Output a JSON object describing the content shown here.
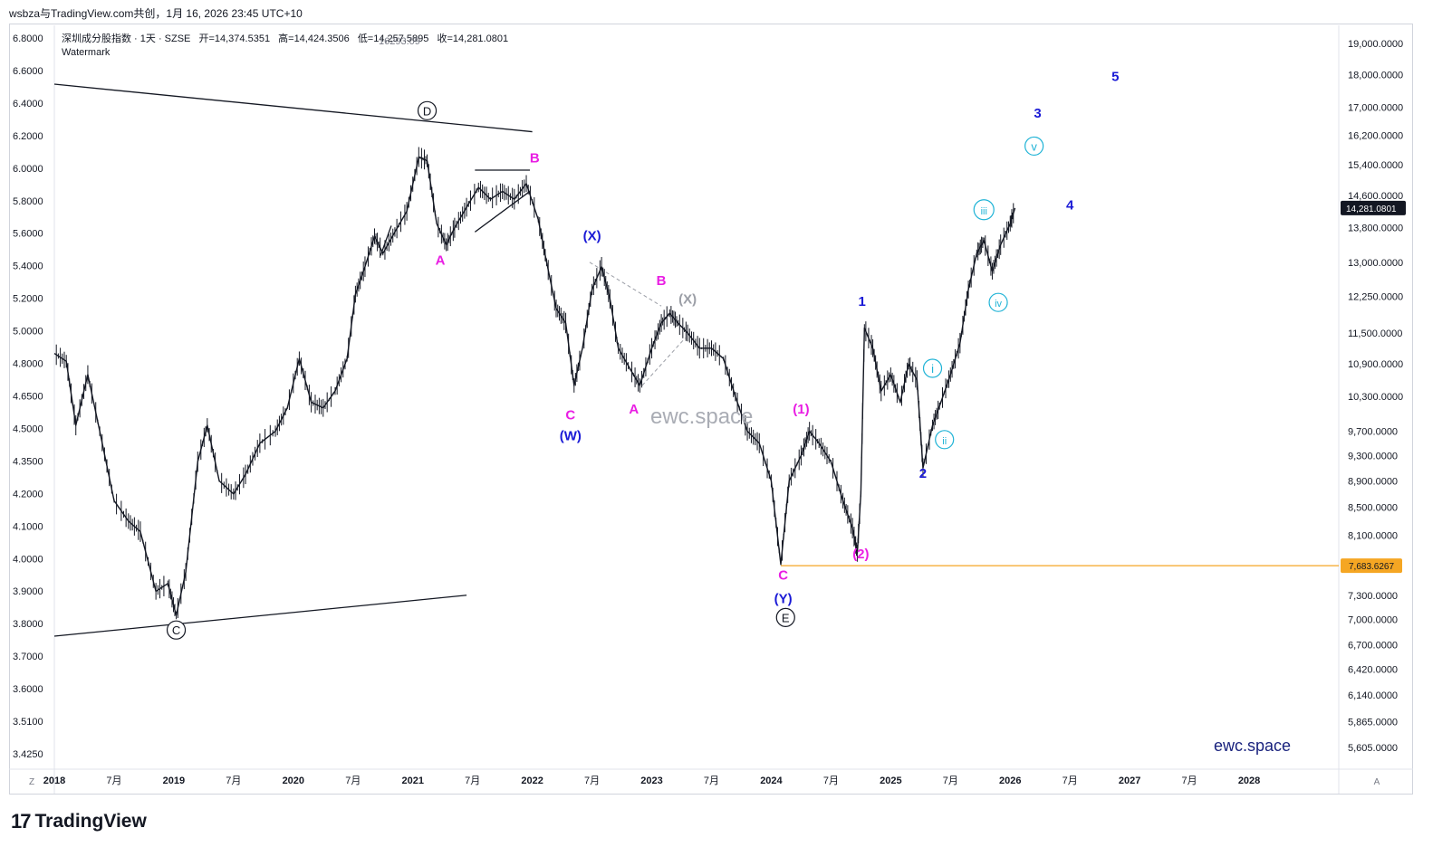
{
  "window_title": "wsbza与TradingView.com共创，1月 16, 2026 23:45 UTC+10",
  "header": {
    "symbol": "深圳成分股指数 · 1天 · SZSE",
    "open": "开=14,374.5351",
    "high": "高=14,424.3506",
    "low": "低=14,257.5895",
    "close": "收=14,281.0801",
    "overlay": "16293.09",
    "watermark_label": "Watermark"
  },
  "watermark_text": "ewc.space",
  "corner_text": "ewc.space",
  "brand": {
    "logo": "17",
    "name": "TradingView"
  },
  "colors": {
    "black": "#131722",
    "magenta": "#e91ee3",
    "blue": "#1a1ad6",
    "cyan": "#1fb3d6",
    "gray": "#9b9ea6",
    "orange": "#f5a623",
    "price_bg": "#131722"
  },
  "chart_data": {
    "type": "line",
    "title": "深圳成分股指数 · 1天 · SZSE",
    "xlabel": "",
    "ylabel": "",
    "y_scale": "log",
    "ylim": [
      5400,
      19600
    ],
    "xlim": [
      2018.0,
      2028.75
    ],
    "left_axis_ticks": [
      "6.8000",
      "6.6000",
      "6.4000",
      "6.2000",
      "6.0000",
      "5.8000",
      "5.6000",
      "5.4000",
      "5.2000",
      "5.0000",
      "4.8000",
      "4.6500",
      "4.5000",
      "4.3500",
      "4.2000",
      "4.1000",
      "4.0000",
      "3.9000",
      "3.8000",
      "3.7000",
      "3.6000",
      "3.5100",
      "3.4250"
    ],
    "right_axis_ticks": [
      {
        "label": "19,000.0000",
        "value": 19000
      },
      {
        "label": "18,000.0000",
        "value": 18000
      },
      {
        "label": "17,000.0000",
        "value": 17000
      },
      {
        "label": "16,200.0000",
        "value": 16200
      },
      {
        "label": "15,400.0000",
        "value": 15400
      },
      {
        "label": "14,600.0000",
        "value": 14600
      },
      {
        "label": "13,800.0000",
        "value": 13800
      },
      {
        "label": "13,000.0000",
        "value": 13000
      },
      {
        "label": "12,250.0000",
        "value": 12250
      },
      {
        "label": "11,500.0000",
        "value": 11500
      },
      {
        "label": "10,900.0000",
        "value": 10900
      },
      {
        "label": "10,300.0000",
        "value": 10300
      },
      {
        "label": "9,700.0000",
        "value": 9700
      },
      {
        "label": "9,300.0000",
        "value": 9300
      },
      {
        "label": "8,900.0000",
        "value": 8900
      },
      {
        "label": "8,500.0000",
        "value": 8500
      },
      {
        "label": "8,100.0000",
        "value": 8100
      },
      {
        "label": "7,300.0000",
        "value": 7300
      },
      {
        "label": "7,000.0000",
        "value": 7000
      },
      {
        "label": "6,700.0000",
        "value": 6700
      },
      {
        "label": "6,420.0000",
        "value": 6420
      },
      {
        "label": "6,140.0000",
        "value": 6140
      },
      {
        "label": "5,865.0000",
        "value": 5865
      },
      {
        "label": "5,605.0000",
        "value": 5605
      }
    ],
    "x_ticks": [
      {
        "label": "2018",
        "value": 2018.0,
        "bold": true
      },
      {
        "label": "7月",
        "value": 2018.5,
        "bold": false
      },
      {
        "label": "2019",
        "value": 2019.0,
        "bold": true
      },
      {
        "label": "7月",
        "value": 2019.5,
        "bold": false
      },
      {
        "label": "2020",
        "value": 2020.0,
        "bold": true
      },
      {
        "label": "7月",
        "value": 2020.5,
        "bold": false
      },
      {
        "label": "2021",
        "value": 2021.0,
        "bold": true
      },
      {
        "label": "7月",
        "value": 2021.5,
        "bold": false
      },
      {
        "label": "2022",
        "value": 2022.0,
        "bold": true
      },
      {
        "label": "7月",
        "value": 2022.5,
        "bold": false
      },
      {
        "label": "2023",
        "value": 2023.0,
        "bold": true
      },
      {
        "label": "7月",
        "value": 2023.5,
        "bold": false
      },
      {
        "label": "2024",
        "value": 2024.0,
        "bold": true
      },
      {
        "label": "7月",
        "value": 2024.5,
        "bold": false
      },
      {
        "label": "2025",
        "value": 2025.0,
        "bold": true
      },
      {
        "label": "7月",
        "value": 2025.5,
        "bold": false
      },
      {
        "label": "2026",
        "value": 2026.0,
        "bold": true
      },
      {
        "label": "7月",
        "value": 2026.5,
        "bold": false
      },
      {
        "label": "2027",
        "value": 2027.0,
        "bold": true
      },
      {
        "label": "7月",
        "value": 2027.5,
        "bold": false
      },
      {
        "label": "2028",
        "value": 2028.0,
        "bold": true
      }
    ],
    "series": [
      {
        "color": "#131722",
        "points": [
          [
            2018.0,
            11100
          ],
          [
            2018.1,
            10950
          ],
          [
            2018.18,
            9800
          ],
          [
            2018.28,
            10700
          ],
          [
            2018.38,
            9700
          ],
          [
            2018.5,
            8600
          ],
          [
            2018.62,
            8300
          ],
          [
            2018.72,
            8150
          ],
          [
            2018.85,
            7350
          ],
          [
            2018.95,
            7450
          ],
          [
            2019.02,
            7050
          ],
          [
            2019.1,
            7600
          ],
          [
            2019.2,
            9200
          ],
          [
            2019.28,
            9800
          ],
          [
            2019.38,
            8900
          ],
          [
            2019.5,
            8700
          ],
          [
            2019.6,
            9000
          ],
          [
            2019.72,
            9500
          ],
          [
            2019.85,
            9700
          ],
          [
            2019.95,
            10100
          ],
          [
            2020.05,
            11000
          ],
          [
            2020.15,
            10200
          ],
          [
            2020.25,
            10100
          ],
          [
            2020.35,
            10400
          ],
          [
            2020.45,
            11000
          ],
          [
            2020.52,
            12300
          ],
          [
            2020.6,
            12900
          ],
          [
            2020.68,
            13600
          ],
          [
            2020.75,
            13200
          ],
          [
            2020.85,
            13700
          ],
          [
            2020.95,
            14200
          ],
          [
            2021.05,
            15600
          ],
          [
            2021.12,
            15500
          ],
          [
            2021.2,
            13900
          ],
          [
            2021.28,
            13400
          ],
          [
            2021.35,
            13800
          ],
          [
            2021.45,
            14300
          ],
          [
            2021.55,
            14800
          ],
          [
            2021.65,
            14500
          ],
          [
            2021.75,
            14700
          ],
          [
            2021.85,
            14500
          ],
          [
            2021.95,
            14900
          ],
          [
            2022.05,
            14000
          ],
          [
            2022.12,
            13000
          ],
          [
            2022.2,
            12000
          ],
          [
            2022.28,
            11700
          ],
          [
            2022.35,
            10500
          ],
          [
            2022.42,
            11200
          ],
          [
            2022.5,
            12400
          ],
          [
            2022.58,
            12900
          ],
          [
            2022.65,
            12200
          ],
          [
            2022.72,
            11200
          ],
          [
            2022.82,
            10800
          ],
          [
            2022.9,
            10500
          ],
          [
            2023.0,
            11200
          ],
          [
            2023.08,
            11700
          ],
          [
            2023.15,
            11900
          ],
          [
            2023.22,
            11700
          ],
          [
            2023.3,
            11500
          ],
          [
            2023.4,
            11200
          ],
          [
            2023.5,
            11200
          ],
          [
            2023.6,
            11000
          ],
          [
            2023.7,
            10300
          ],
          [
            2023.8,
            9700
          ],
          [
            2023.9,
            9500
          ],
          [
            2024.0,
            8900
          ],
          [
            2024.08,
            7700
          ],
          [
            2024.15,
            8900
          ],
          [
            2024.25,
            9300
          ],
          [
            2024.32,
            9700
          ],
          [
            2024.4,
            9500
          ],
          [
            2024.5,
            9200
          ],
          [
            2024.6,
            8600
          ],
          [
            2024.68,
            8200
          ],
          [
            2024.72,
            7850
          ],
          [
            2024.75,
            8700
          ],
          [
            2024.78,
            11600
          ],
          [
            2024.85,
            11200
          ],
          [
            2024.92,
            10400
          ],
          [
            2025.0,
            10700
          ],
          [
            2025.08,
            10200
          ],
          [
            2025.15,
            10900
          ],
          [
            2025.22,
            10600
          ],
          [
            2025.27,
            9100
          ],
          [
            2025.35,
            9800
          ],
          [
            2025.42,
            10200
          ],
          [
            2025.5,
            10700
          ],
          [
            2025.58,
            11300
          ],
          [
            2025.65,
            12400
          ],
          [
            2025.72,
            13200
          ],
          [
            2025.78,
            13500
          ],
          [
            2025.85,
            12800
          ],
          [
            2025.92,
            13400
          ],
          [
            2026.0,
            13900
          ],
          [
            2026.04,
            14281
          ]
        ]
      }
    ],
    "trend_lines": [
      {
        "from": [
          2018.0,
          17700
        ],
        "to": [
          2022.0,
          16300
        ],
        "color": "#131722",
        "dashed": false
      },
      {
        "from": [
          2018.0,
          6800
        ],
        "to": [
          2021.45,
          7300
        ],
        "color": "#131722",
        "dashed": false
      },
      {
        "from": [
          2021.52,
          15250
        ],
        "to": [
          2021.98,
          15250
        ],
        "color": "#131722",
        "dashed": false
      },
      {
        "from": [
          2021.52,
          13700
        ],
        "to": [
          2021.98,
          14700
        ],
        "color": "#131722",
        "dashed": false
      },
      {
        "from": [
          2022.48,
          13000
        ],
        "to": [
          2023.08,
          12050
        ],
        "color": "#9b9ea6",
        "dashed": true
      },
      {
        "from": [
          2022.92,
          10500
        ],
        "to": [
          2023.28,
          11400
        ],
        "color": "#9b9ea6",
        "dashed": true
      },
      {
        "from": [
          2020.73,
          13150
        ],
        "to": [
          2020.82,
          13850
        ],
        "color": "#131722",
        "dashed": false
      }
    ],
    "horizontal_level": {
      "value": 7683.6267,
      "label": "7,683.6267",
      "from_x": 2024.08,
      "color": "#f5a623"
    },
    "last_price": {
      "value": 14281.0801,
      "label": "14,281.0801"
    },
    "wave_labels": [
      {
        "text": "D",
        "x": 2021.12,
        "y": 16800,
        "color": "#131722",
        "circled": true
      },
      {
        "text": "C",
        "x": 2019.02,
        "y": 6830,
        "color": "#131722",
        "circled": true
      },
      {
        "text": "E",
        "x": 2024.12,
        "y": 6980,
        "color": "#131722",
        "circled": true
      },
      {
        "text": "A",
        "x": 2021.23,
        "y": 12950,
        "color": "#e91ee3",
        "circled": false
      },
      {
        "text": "B",
        "x": 2022.02,
        "y": 15450,
        "color": "#e91ee3",
        "circled": false
      },
      {
        "text": "C",
        "x": 2022.32,
        "y": 9900,
        "color": "#e91ee3",
        "circled": false
      },
      {
        "text": "(W)",
        "x": 2022.32,
        "y": 9550,
        "color": "#1a1ad6",
        "circled": false
      },
      {
        "text": "(X)",
        "x": 2022.5,
        "y": 13500,
        "color": "#1a1ad6",
        "circled": false
      },
      {
        "text": "A",
        "x": 2022.85,
        "y": 10000,
        "color": "#e91ee3",
        "circled": false
      },
      {
        "text": "B",
        "x": 2023.08,
        "y": 12500,
        "color": "#e91ee3",
        "circled": false
      },
      {
        "text": "(X)",
        "x": 2023.3,
        "y": 12100,
        "color": "#9b9ea6",
        "circled": false
      },
      {
        "text": "C",
        "x": 2024.1,
        "y": 7500,
        "color": "#e91ee3",
        "circled": false
      },
      {
        "text": "(Y)",
        "x": 2024.1,
        "y": 7200,
        "color": "#1a1ad6",
        "circled": false
      },
      {
        "text": "(1)",
        "x": 2024.25,
        "y": 10000,
        "color": "#e91ee3",
        "circled": false
      },
      {
        "text": "(2)",
        "x": 2024.75,
        "y": 7780,
        "color": "#e91ee3",
        "circled": false
      },
      {
        "text": "1",
        "x": 2024.76,
        "y": 12050,
        "color": "#1a1ad6",
        "circled": false
      },
      {
        "text": "2",
        "x": 2025.27,
        "y": 8950,
        "color": "#1a1ad6",
        "circled": false
      },
      {
        "text": "i",
        "x": 2025.35,
        "y": 10750,
        "color": "#1fb3d6",
        "circled": true
      },
      {
        "text": "ii",
        "x": 2025.45,
        "y": 9500,
        "color": "#1fb3d6",
        "circled": true
      },
      {
        "text": "iii",
        "x": 2025.78,
        "y": 14150,
        "color": "#1fb3d6",
        "circled": true
      },
      {
        "text": "iv",
        "x": 2025.9,
        "y": 12050,
        "color": "#1fb3d6",
        "circled": true
      },
      {
        "text": "v",
        "x": 2026.2,
        "y": 15800,
        "color": "#1fb3d6",
        "circled": true
      },
      {
        "text": "3",
        "x": 2026.23,
        "y": 16700,
        "color": "#1a1ad6",
        "circled": false
      },
      {
        "text": "4",
        "x": 2026.5,
        "y": 14250,
        "color": "#1a1ad6",
        "circled": false
      },
      {
        "text": "5",
        "x": 2026.88,
        "y": 17800,
        "color": "#1a1ad6",
        "circled": false
      }
    ]
  },
  "axis_buttons": {
    "left": "Z",
    "right": "A"
  }
}
